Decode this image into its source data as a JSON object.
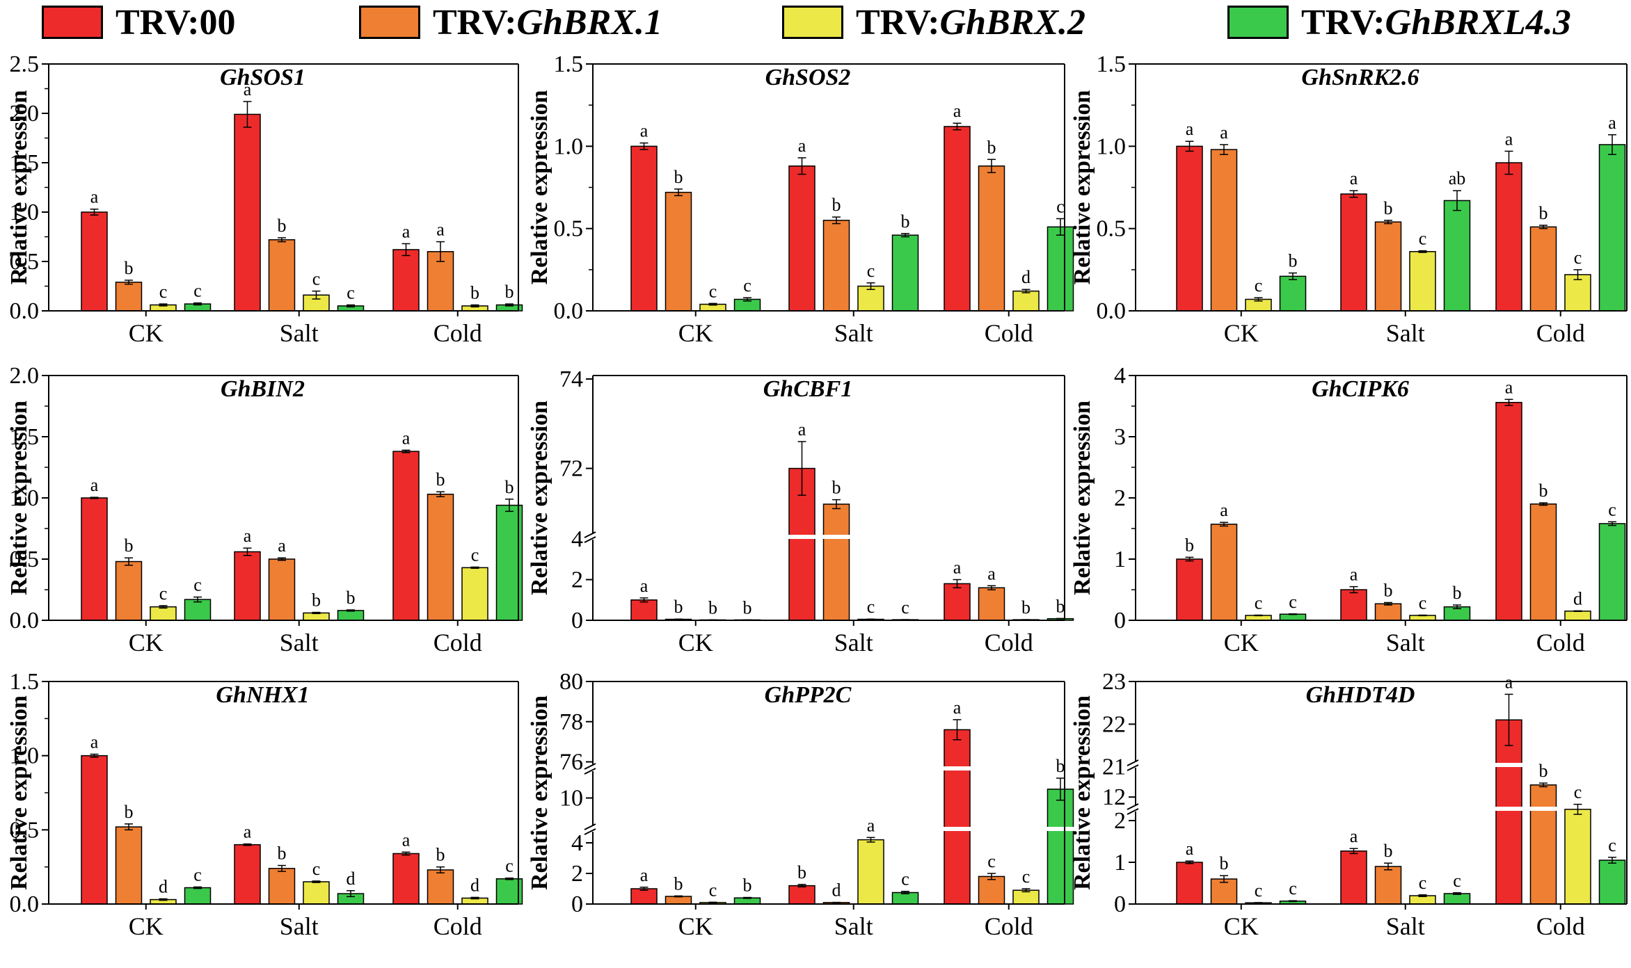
{
  "figure": {
    "legend": [
      {
        "prefix": "TRV:",
        "name": "00",
        "italic": false,
        "color": "#ee2b2b"
      },
      {
        "prefix": "TRV:",
        "name": "GhBRX.1",
        "italic": true,
        "color": "#ef7f33"
      },
      {
        "prefix": "TRV:",
        "name": "GhBRX.2",
        "italic": true,
        "color": "#ece847"
      },
      {
        "prefix": "TRV:",
        "name": "GhBRXL4.3",
        "italic": true,
        "color": "#3bc94b"
      }
    ],
    "break_gap_color": "#ffffff"
  },
  "chart_data": [
    {
      "type": "bar",
      "title": "GhSOS1",
      "ylabel": "Relative expression",
      "categories": [
        "CK",
        "Salt",
        "Cold"
      ],
      "yticks": [
        "0.0",
        "0.5",
        "1.0",
        "1.5",
        "2.0",
        "2.5"
      ],
      "ylim": [
        0,
        2.5
      ],
      "series": [
        {
          "name": "TRV:00",
          "values": [
            1.0,
            1.99,
            0.62
          ],
          "errors": [
            0.03,
            0.13,
            0.06
          ],
          "letters": [
            "a",
            "a",
            "a"
          ]
        },
        {
          "name": "TRV:GhBRX.1",
          "values": [
            0.29,
            0.72,
            0.6
          ],
          "errors": [
            0.02,
            0.02,
            0.1
          ],
          "letters": [
            "b",
            "b",
            "a"
          ]
        },
        {
          "name": "TRV:GhBRX.2",
          "values": [
            0.06,
            0.16,
            0.05
          ],
          "errors": [
            0.01,
            0.04,
            0.01
          ],
          "letters": [
            "c",
            "c",
            "b"
          ]
        },
        {
          "name": "TRV:GhBRXL4.3",
          "values": [
            0.07,
            0.05,
            0.06
          ],
          "errors": [
            0.01,
            0.01,
            0.01
          ],
          "letters": [
            "c",
            "c",
            "b"
          ]
        }
      ]
    },
    {
      "type": "bar",
      "title": "GhSOS2",
      "ylabel": "Relative expression",
      "categories": [
        "CK",
        "Salt",
        "Cold"
      ],
      "yticks": [
        "0.0",
        "0.5",
        "1.0",
        "1.5"
      ],
      "ylim": [
        0,
        1.5
      ],
      "series": [
        {
          "name": "TRV:00",
          "values": [
            1.0,
            0.88,
            1.12
          ],
          "errors": [
            0.02,
            0.05,
            0.02
          ],
          "letters": [
            "a",
            "a",
            "a"
          ]
        },
        {
          "name": "TRV:GhBRX.1",
          "values": [
            0.72,
            0.55,
            0.88
          ],
          "errors": [
            0.02,
            0.02,
            0.04
          ],
          "letters": [
            "b",
            "b",
            "b"
          ]
        },
        {
          "name": "TRV:GhBRX.2",
          "values": [
            0.04,
            0.15,
            0.12
          ],
          "errors": [
            0.005,
            0.02,
            0.01
          ],
          "letters": [
            "c",
            "c",
            "d"
          ]
        },
        {
          "name": "TRV:GhBRXL4.3",
          "values": [
            0.07,
            0.46,
            0.51
          ],
          "errors": [
            0.01,
            0.01,
            0.05
          ],
          "letters": [
            "c",
            "b",
            "c"
          ]
        }
      ]
    },
    {
      "type": "bar",
      "title": "GhSnRK2.6",
      "ylabel": "Relative expression",
      "categories": [
        "CK",
        "Salt",
        "Cold"
      ],
      "yticks": [
        "0.0",
        "0.5",
        "1.0",
        "1.5"
      ],
      "ylim": [
        0,
        1.5
      ],
      "series": [
        {
          "name": "TRV:00",
          "values": [
            1.0,
            0.71,
            0.9
          ],
          "errors": [
            0.03,
            0.02,
            0.07
          ],
          "letters": [
            "a",
            "a",
            "a"
          ]
        },
        {
          "name": "TRV:GhBRX.1",
          "values": [
            0.98,
            0.54,
            0.51
          ],
          "errors": [
            0.03,
            0.01,
            0.01
          ],
          "letters": [
            "a",
            "b",
            "b"
          ]
        },
        {
          "name": "TRV:GhBRX.2",
          "values": [
            0.07,
            0.36,
            0.22
          ],
          "errors": [
            0.01,
            0.005,
            0.03
          ],
          "letters": [
            "c",
            "c",
            "c"
          ]
        },
        {
          "name": "TRV:GhBRXL4.3",
          "values": [
            0.21,
            0.67,
            1.01
          ],
          "errors": [
            0.02,
            0.06,
            0.06
          ],
          "letters": [
            "b",
            "ab",
            "a"
          ]
        }
      ]
    },
    {
      "type": "bar",
      "title": "GhBIN2",
      "ylabel": "Relative expression",
      "categories": [
        "CK",
        "Salt",
        "Cold"
      ],
      "yticks": [
        "0.0",
        "0.5",
        "1.0",
        "1.5",
        "2.0"
      ],
      "ylim": [
        0,
        2.0
      ],
      "series": [
        {
          "name": "TRV:00",
          "values": [
            1.0,
            0.56,
            1.38
          ],
          "errors": [
            0.005,
            0.03,
            0.01
          ],
          "letters": [
            "a",
            "a",
            "a"
          ]
        },
        {
          "name": "TRV:GhBRX.1",
          "values": [
            0.48,
            0.5,
            1.03
          ],
          "errors": [
            0.03,
            0.01,
            0.02
          ],
          "letters": [
            "b",
            "a",
            "b"
          ]
        },
        {
          "name": "TRV:GhBRX.2",
          "values": [
            0.11,
            0.06,
            0.43
          ],
          "errors": [
            0.01,
            0.005,
            0.005
          ],
          "letters": [
            "c",
            "b",
            "c"
          ]
        },
        {
          "name": "TRV:GhBRXL4.3",
          "values": [
            0.17,
            0.08,
            0.94
          ],
          "errors": [
            0.02,
            0.005,
            0.05
          ],
          "letters": [
            "c",
            "b",
            "b"
          ]
        }
      ]
    },
    {
      "type": "bar",
      "title": "GhCBF1",
      "ylabel": "Relative expression",
      "categories": [
        "CK",
        "Salt",
        "Cold"
      ],
      "yticks": [
        "0",
        "2",
        "4",
        "72",
        "74"
      ],
      "axis_break": {
        "lower": [
          0,
          4
        ],
        "upper": [
          70.5,
          74
        ]
      },
      "series": [
        {
          "name": "TRV:00",
          "values": [
            1.0,
            72.0,
            1.8
          ],
          "errors": [
            0.1,
            0.6,
            0.2
          ],
          "letters": [
            "a",
            "a",
            "a"
          ]
        },
        {
          "name": "TRV:GhBRX.1",
          "values": [
            0.05,
            71.2,
            1.6
          ],
          "errors": [
            0.01,
            0.1,
            0.1
          ],
          "letters": [
            "b",
            "b",
            "a"
          ]
        },
        {
          "name": "TRV:GhBRX.2",
          "values": [
            0.02,
            0.05,
            0.03
          ],
          "errors": [
            0.0,
            0.01,
            0.0
          ],
          "letters": [
            "b",
            "c",
            "b"
          ]
        },
        {
          "name": "TRV:GhBRXL4.3",
          "values": [
            0.02,
            0.03,
            0.08
          ],
          "errors": [
            0.0,
            0.0,
            0.01
          ],
          "letters": [
            "b",
            "c",
            "b"
          ]
        }
      ]
    },
    {
      "type": "bar",
      "title": "GhCIPK6",
      "ylabel": "Relative expression",
      "categories": [
        "CK",
        "Salt",
        "Cold"
      ],
      "yticks": [
        "0",
        "1",
        "2",
        "3",
        "4"
      ],
      "ylim": [
        0,
        4
      ],
      "series": [
        {
          "name": "TRV:00",
          "values": [
            1.0,
            0.5,
            3.56
          ],
          "errors": [
            0.03,
            0.05,
            0.05
          ],
          "letters": [
            "b",
            "a",
            "a"
          ]
        },
        {
          "name": "TRV:GhBRX.1",
          "values": [
            1.57,
            0.27,
            1.9
          ],
          "errors": [
            0.03,
            0.02,
            0.02
          ],
          "letters": [
            "a",
            "b",
            "b"
          ]
        },
        {
          "name": "TRV:GhBRX.2",
          "values": [
            0.08,
            0.08,
            0.15
          ],
          "errors": [
            0.005,
            0.005,
            0.005
          ],
          "letters": [
            "c",
            "c",
            "d"
          ]
        },
        {
          "name": "TRV:GhBRXL4.3",
          "values": [
            0.1,
            0.22,
            1.58
          ],
          "errors": [
            0.005,
            0.03,
            0.03
          ],
          "letters": [
            "c",
            "b",
            "c"
          ]
        }
      ]
    },
    {
      "type": "bar",
      "title": "GhNHX1",
      "ylabel": "Relative expression",
      "categories": [
        "CK",
        "Salt",
        "Cold"
      ],
      "yticks": [
        "0.0",
        "0.5",
        "1.0",
        "1.5"
      ],
      "ylim": [
        0,
        1.5
      ],
      "series": [
        {
          "name": "TRV:00",
          "values": [
            1.0,
            0.4,
            0.34
          ],
          "errors": [
            0.01,
            0.005,
            0.01
          ],
          "letters": [
            "a",
            "a",
            "a"
          ]
        },
        {
          "name": "TRV:GhBRX.1",
          "values": [
            0.52,
            0.24,
            0.23
          ],
          "errors": [
            0.02,
            0.02,
            0.02
          ],
          "letters": [
            "b",
            "b",
            "b"
          ]
        },
        {
          "name": "TRV:GhBRX.2",
          "values": [
            0.03,
            0.15,
            0.04
          ],
          "errors": [
            0.005,
            0.005,
            0.005
          ],
          "letters": [
            "d",
            "c",
            "d"
          ]
        },
        {
          "name": "TRV:GhBRXL4.3",
          "values": [
            0.11,
            0.07,
            0.17
          ],
          "errors": [
            0.005,
            0.02,
            0.005
          ],
          "letters": [
            "c",
            "d",
            "c"
          ]
        }
      ]
    },
    {
      "type": "bar",
      "title": "GhPP2C",
      "ylabel": "Relative expression",
      "categories": [
        "CK",
        "Salt",
        "Cold"
      ],
      "yticks": [
        "0",
        "2",
        "4",
        "10",
        "76",
        "78",
        "80"
      ],
      "axis_break": {
        "segments": [
          [
            0,
            5
          ],
          [
            8.5,
            11.5
          ],
          [
            75.5,
            80
          ]
        ]
      },
      "series": [
        {
          "name": "TRV:00",
          "values": [
            1.0,
            1.2,
            77.6
          ],
          "errors": [
            0.1,
            0.08,
            0.5
          ],
          "letters": [
            "a",
            "b",
            "a"
          ]
        },
        {
          "name": "TRV:GhBRX.1",
          "values": [
            0.5,
            0.1,
            1.8
          ],
          "errors": [
            0.03,
            0.01,
            0.2
          ],
          "letters": [
            "b",
            "d",
            "c"
          ]
        },
        {
          "name": "TRV:GhBRX.2",
          "values": [
            0.1,
            4.2,
            0.9
          ],
          "errors": [
            0.02,
            0.15,
            0.1
          ],
          "letters": [
            "c",
            "a",
            "c"
          ]
        },
        {
          "name": "TRV:GhBRXL4.3",
          "values": [
            0.4,
            0.75,
            10.4
          ],
          "errors": [
            0.03,
            0.08,
            0.5
          ],
          "letters": [
            "b",
            "c",
            "b"
          ]
        }
      ]
    },
    {
      "type": "bar",
      "title": "GhHDT4D",
      "ylabel": "Relative expression",
      "categories": [
        "CK",
        "Salt",
        "Cold"
      ],
      "yticks": [
        "0",
        "1",
        "2",
        "12",
        "21",
        "22",
        "23"
      ],
      "axis_break": {
        "segments": [
          [
            0,
            2.5
          ],
          [
            11.5,
            12.6
          ],
          [
            20.8,
            23
          ]
        ]
      },
      "series": [
        {
          "name": "TRV:00",
          "values": [
            1.0,
            1.27,
            22.1
          ],
          "errors": [
            0.03,
            0.06,
            0.6
          ],
          "letters": [
            "a",
            "a",
            "a"
          ]
        },
        {
          "name": "TRV:GhBRX.1",
          "values": [
            0.6,
            0.9,
            12.4
          ],
          "errors": [
            0.08,
            0.08,
            0.06
          ],
          "letters": [
            "b",
            "b",
            "b"
          ]
        },
        {
          "name": "TRV:GhBRX.2",
          "values": [
            0.03,
            0.2,
            2.27
          ],
          "errors": [
            0.005,
            0.02,
            0.12
          ],
          "letters": [
            "c",
            "c",
            "c"
          ]
        },
        {
          "name": "TRV:GhBRXL4.3",
          "values": [
            0.07,
            0.25,
            1.05
          ],
          "errors": [
            0.01,
            0.02,
            0.07
          ],
          "letters": [
            "c",
            "c",
            "c"
          ]
        }
      ]
    }
  ]
}
